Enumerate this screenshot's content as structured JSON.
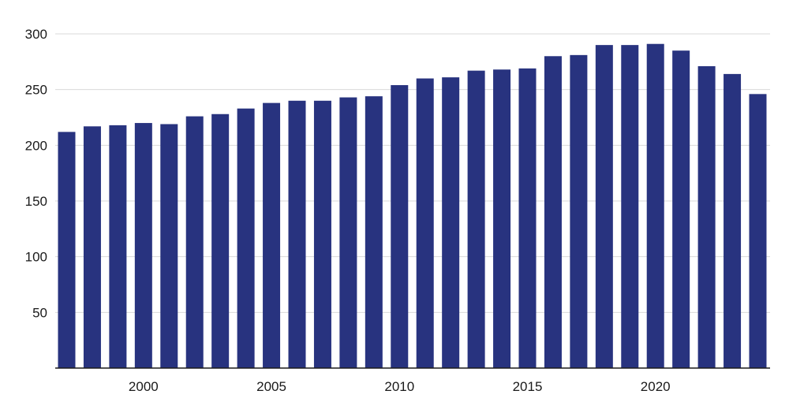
{
  "colors": {
    "bar": "#28337f",
    "background": "#ffffff",
    "grid": "#d9d9d9",
    "axis": "#1a1a1a"
  },
  "chart_data": {
    "type": "bar",
    "title": "",
    "xlabel": "",
    "ylabel": "",
    "grid": true,
    "legend": "none",
    "ylim": [
      0,
      300
    ],
    "yticks": [
      50,
      100,
      150,
      200,
      250,
      300
    ],
    "xticks": [
      "2000",
      "2005",
      "2010",
      "2015",
      "2020"
    ],
    "categories": [
      "1997",
      "1998",
      "1999",
      "2000",
      "2001",
      "2002",
      "2003",
      "2004",
      "2005",
      "2006",
      "2007",
      "2008",
      "2009",
      "2010",
      "2011",
      "2012",
      "2013",
      "2014",
      "2015",
      "2016",
      "2017",
      "2018",
      "2019",
      "2020",
      "2021",
      "2022",
      "2023",
      "2024"
    ],
    "values": [
      212,
      217,
      218,
      220,
      219,
      226,
      228,
      233,
      238,
      240,
      240,
      243,
      244,
      254,
      260,
      261,
      267,
      268,
      269,
      280,
      281,
      290,
      290,
      291,
      285,
      271,
      264,
      246
    ]
  }
}
